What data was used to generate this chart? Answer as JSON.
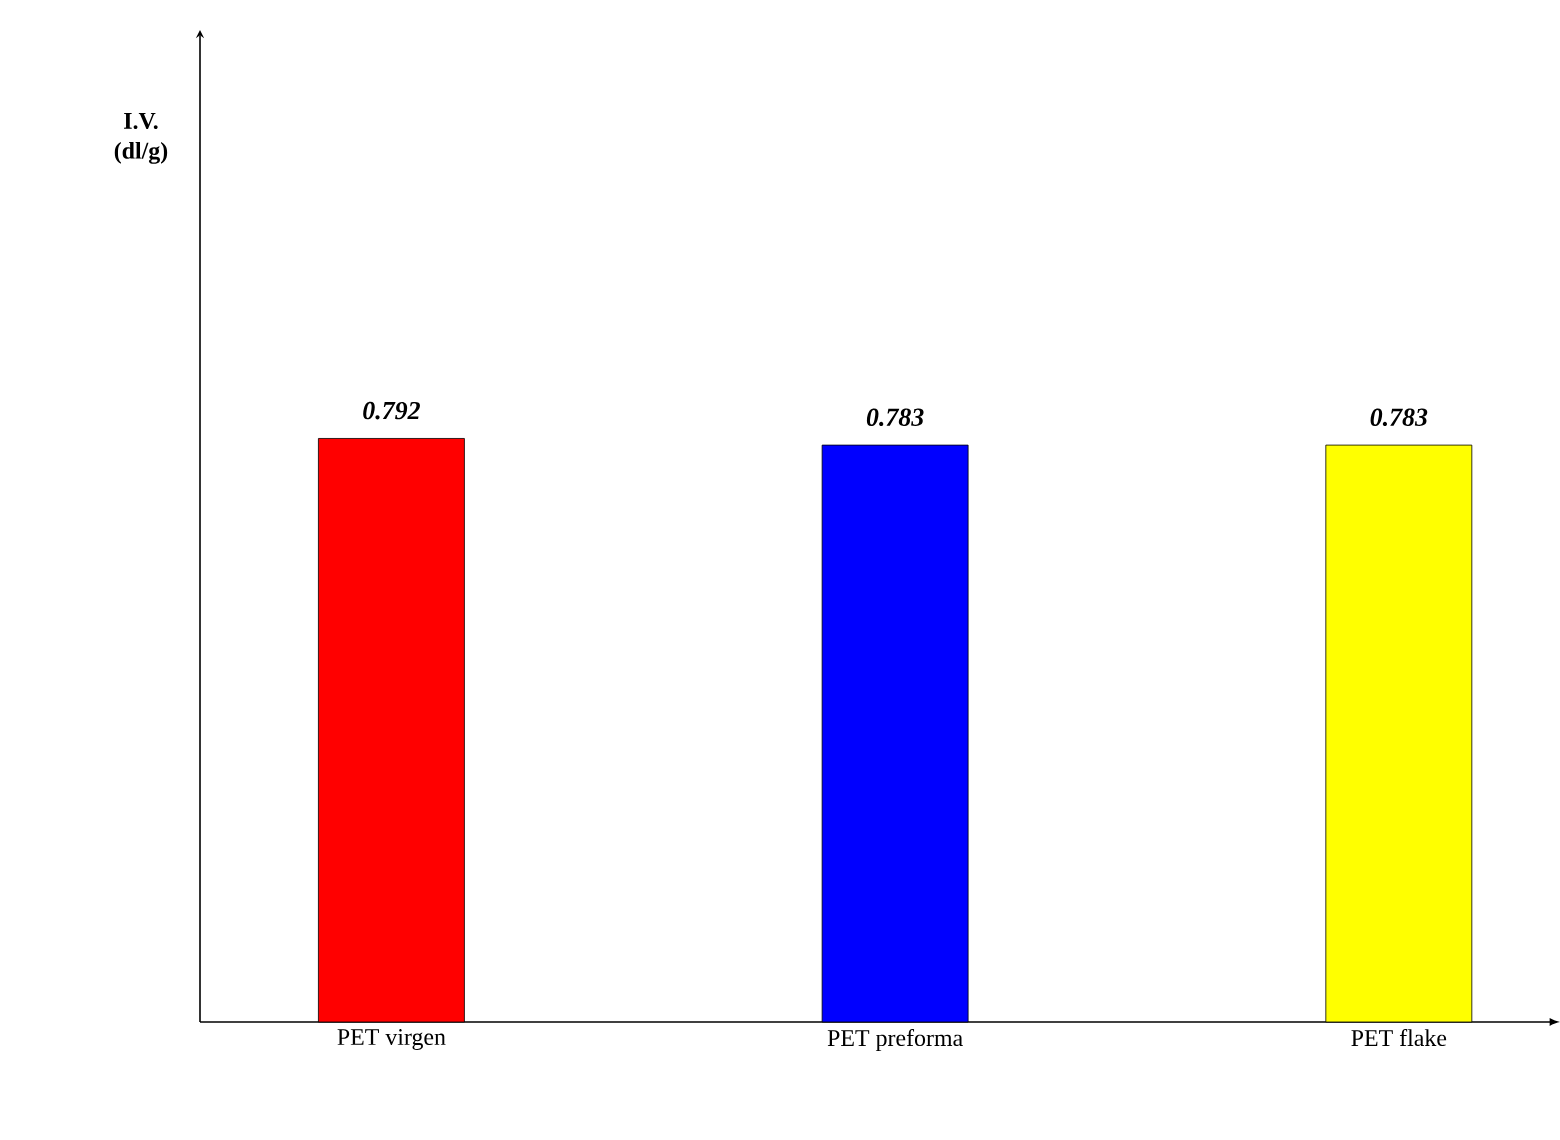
{
  "chart_data": {
    "type": "bar",
    "annotations": [
      "I.V. (dl/g)"
    ],
    "categories": [
      "PET virgen",
      "PET preforma",
      "PET flake"
    ],
    "values": [
      0.792,
      0.783,
      0.783
    ],
    "colors": [
      "#ff0000",
      "#0000ff",
      "#ffff00"
    ],
    "data_labels": true
  }
}
